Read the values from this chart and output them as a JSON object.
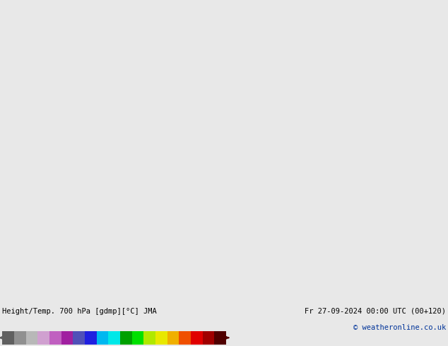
{
  "title_left": "Height/Temp. 700 hPa [gdmp][°C] JMA",
  "title_right": "Fr 27-09-2024 00:00 UTC (00+120)",
  "copyright": "© weatheronline.co.uk",
  "background_color": "#e8e8e8",
  "map_background": "#e8e8e8",
  "land_color": "#aaddaa",
  "border_color": "#808080",
  "colorbar_colors": [
    "#606060",
    "#909090",
    "#b8b8b8",
    "#d0a0d0",
    "#c060c0",
    "#a020a0",
    "#5050b8",
    "#2020e0",
    "#00b8f0",
    "#00e8e8",
    "#00a000",
    "#00e000",
    "#b0e800",
    "#e8e800",
    "#f0b000",
    "#f05000",
    "#e00000",
    "#a00000",
    "#500000"
  ],
  "colorbar_values": [
    -54,
    -48,
    -42,
    -36,
    -30,
    -24,
    -18,
    -12,
    -6,
    0,
    6,
    12,
    18,
    24,
    30,
    36,
    42,
    48,
    54
  ],
  "map_extent": [
    -12.5,
    8.5,
    48.0,
    62.5
  ],
  "fig_width": 6.34,
  "fig_height": 4.9,
  "dpi": 100
}
